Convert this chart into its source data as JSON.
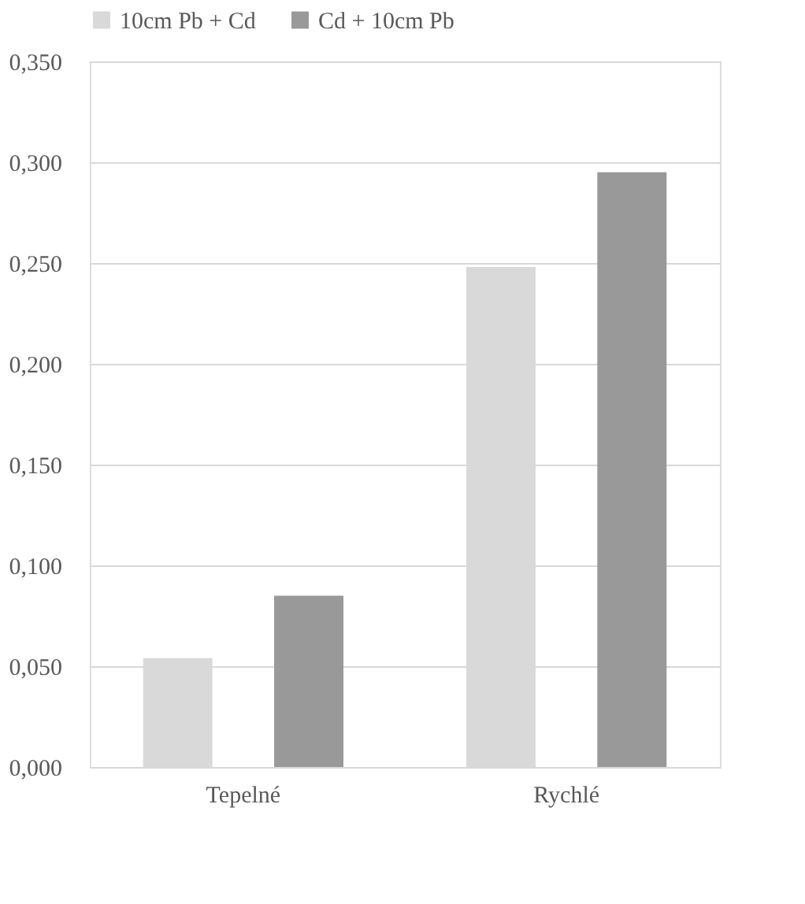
{
  "chart_data": {
    "type": "bar",
    "categories": [
      "Tepelné",
      "Rychlé"
    ],
    "series": [
      {
        "name": "10cm Pb + Cd",
        "color": "#d9d9d9",
        "values": [
          0.054,
          0.248
        ]
      },
      {
        "name": "Cd + 10cm Pb",
        "color": "#999999",
        "values": [
          0.085,
          0.295
        ]
      }
    ],
    "ylim": [
      0,
      0.35
    ],
    "yticks": [
      {
        "value": 0,
        "label": "0,000"
      },
      {
        "value": 0.05,
        "label": "0,050"
      },
      {
        "value": 0.1,
        "label": "0,100"
      },
      {
        "value": 0.15,
        "label": "0,150"
      },
      {
        "value": 0.2,
        "label": "0,200"
      },
      {
        "value": 0.25,
        "label": "0,250"
      },
      {
        "value": 0.3,
        "label": "0,300"
      },
      {
        "value": 0.35,
        "label": "0,350"
      }
    ],
    "grid": "y",
    "legend": "top left"
  }
}
